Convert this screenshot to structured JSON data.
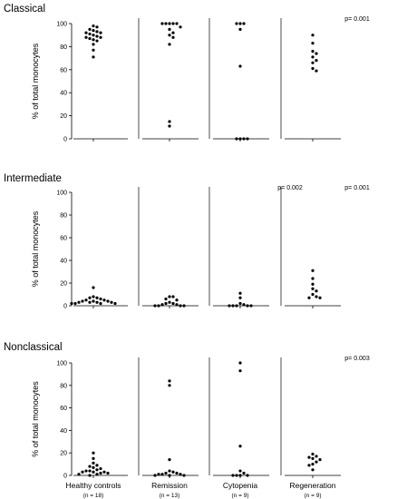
{
  "chart_data": {
    "type": "scatter",
    "categories": [
      "Healthy controls",
      "Remission",
      "Cytopenia",
      "Regeneration"
    ],
    "category_n": [
      "(n = 18)",
      "(n = 13)",
      "(n = 9)",
      "(n = 9)"
    ],
    "ylabel": "% of total monocytes",
    "ylim": [
      0,
      100
    ],
    "yticks": [
      0,
      20,
      40,
      60,
      80,
      100
    ],
    "grid": false,
    "panels": [
      {
        "title": "Classical",
        "pvalues": [
          "",
          "",
          "",
          "p= 0.001"
        ],
        "groups": [
          [
            97,
            98,
            95,
            93,
            94,
            92,
            92,
            91,
            90,
            89,
            88,
            87,
            88,
            86,
            85,
            82,
            77,
            71
          ],
          [
            100,
            100,
            100,
            100,
            100,
            97,
            95,
            92,
            90,
            88,
            82,
            15,
            11
          ],
          [
            100,
            100,
            100,
            95,
            63,
            0,
            0,
            0,
            0
          ],
          [
            90,
            83,
            76,
            74,
            71,
            68,
            66,
            61,
            59
          ]
        ]
      },
      {
        "title": "Intermediate",
        "pvalues": [
          "",
          "",
          "p= 0.002",
          "p= 0.001"
        ],
        "groups": [
          [
            16,
            8,
            7,
            7,
            6,
            5,
            5,
            4,
            4,
            4,
            3,
            3,
            3,
            3,
            2,
            2,
            2,
            2
          ],
          [
            8,
            8,
            6,
            5,
            3,
            2,
            2,
            1,
            1,
            0,
            0,
            0,
            0
          ],
          [
            11,
            7,
            2,
            1,
            0,
            0,
            0,
            0,
            0
          ],
          [
            31,
            24,
            19,
            15,
            13,
            10,
            8,
            7,
            7
          ]
        ]
      },
      {
        "title": "Nonclassical",
        "pvalues": [
          "",
          "",
          "",
          "p= 0.003"
        ],
        "groups": [
          [
            20,
            15,
            11,
            9,
            8,
            7,
            6,
            5,
            4,
            4,
            3,
            3,
            3,
            2,
            2,
            1,
            1,
            0
          ],
          [
            84,
            80,
            14,
            4,
            3,
            2,
            2,
            1,
            1,
            1,
            0,
            0,
            0
          ],
          [
            100,
            93,
            26,
            4,
            2,
            0,
            0,
            0,
            0
          ],
          [
            19,
            17,
            16,
            15,
            14,
            12,
            10,
            9,
            5
          ]
        ]
      }
    ]
  }
}
